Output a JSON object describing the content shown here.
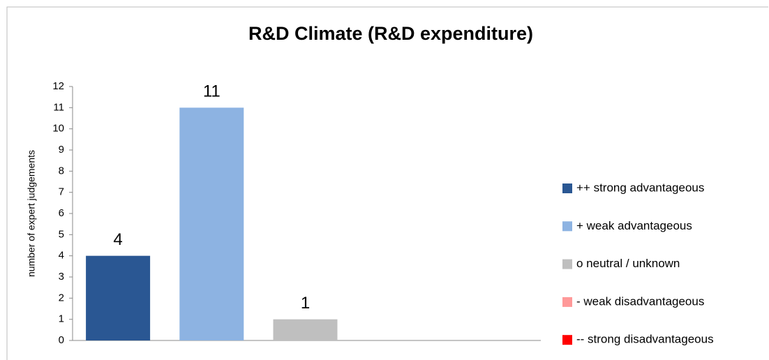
{
  "chart_data": {
    "type": "bar",
    "title": "R&D Climate (R&D expenditure)",
    "y_label": "number of expert judgements",
    "ylim": [
      0,
      12
    ],
    "yticks": [
      0,
      1,
      2,
      3,
      4,
      5,
      6,
      7,
      8,
      9,
      10,
      11,
      12
    ],
    "legend": "right",
    "series": [
      {
        "name": "++ strong advantageous",
        "color": "#2a5793",
        "values": [
          4
        ]
      },
      {
        "name": "+ weak advantageous",
        "color": "#8db3e2",
        "values": [
          11
        ]
      },
      {
        "name": "o neutral / unknown",
        "color": "#bfbfbf",
        "values": [
          1
        ]
      },
      {
        "name": "- weak disadvantageous",
        "color": "#ff9999",
        "values": [
          0
        ]
      },
      {
        "name": "-- strong disadvantageous",
        "color": "#ff0000",
        "values": [
          0
        ]
      }
    ]
  }
}
